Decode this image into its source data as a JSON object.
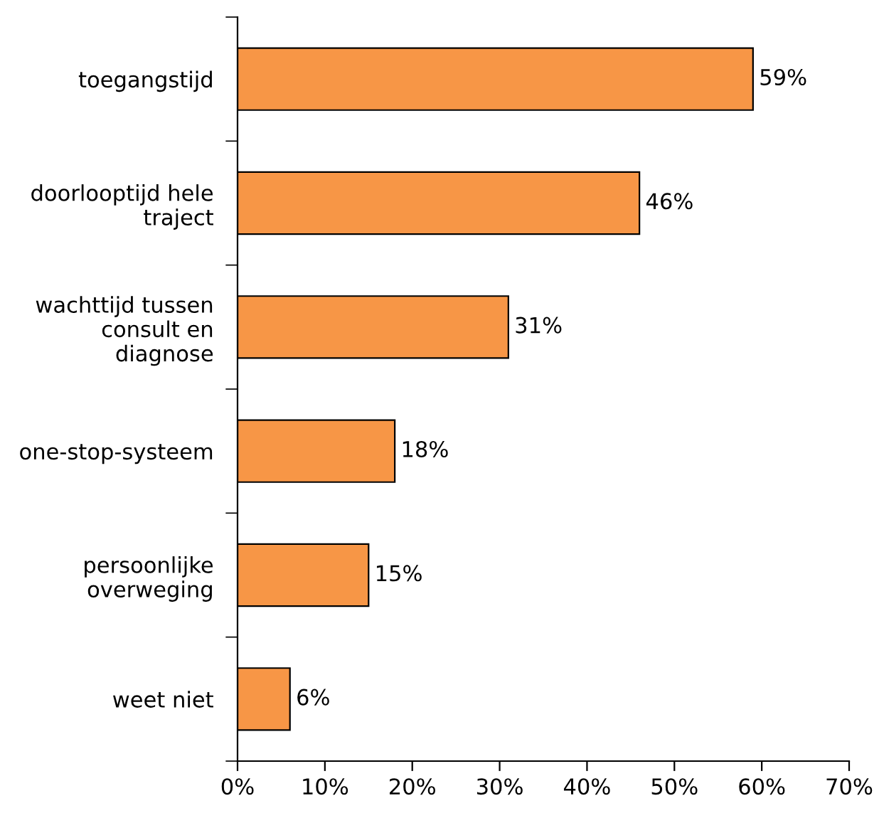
{
  "chart_data": {
    "type": "bar",
    "orientation": "horizontal",
    "categories": [
      "toegangstijd",
      "doorlooptijd hele\ntraject",
      "wachttijd tussen\nconsult en\ndiagnose",
      "one-stop-systeem",
      "persoonlijke\noverweging",
      "weet niet"
    ],
    "values": [
      59,
      46,
      31,
      18,
      15,
      6
    ],
    "color": "#f79646",
    "value_labels": [
      "59%",
      "46%",
      "31%",
      "18%",
      "15%",
      "6%"
    ],
    "xlim": [
      0,
      70
    ],
    "xticks": [
      {
        "value": 0,
        "label": "0%"
      },
      {
        "value": 10,
        "label": "10%"
      },
      {
        "value": 20,
        "label": "20%"
      },
      {
        "value": 30,
        "label": "30%"
      },
      {
        "value": 40,
        "label": "40%"
      },
      {
        "value": 50,
        "label": "50%"
      },
      {
        "value": 60,
        "label": "60%"
      },
      {
        "value": 70,
        "label": "70%"
      }
    ],
    "grid": false,
    "legend": false
  }
}
